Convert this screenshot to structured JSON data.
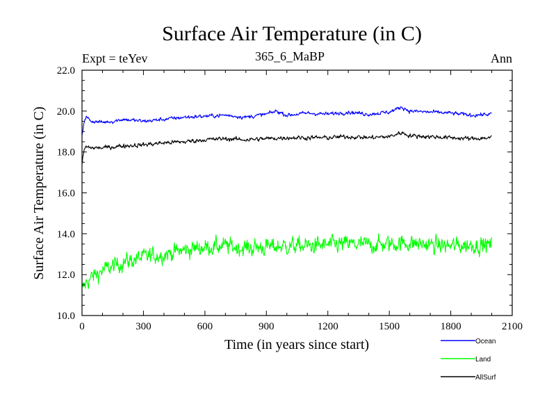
{
  "chart_data": {
    "type": "line",
    "title": "Surface Air Temperature (in C)",
    "subtitle": "365_6_MaBP",
    "left_label": "Expt = teYev",
    "right_label": "Ann",
    "xlabel": "Time (in years since start)",
    "ylabel": "Surface Air Temperature (in C)",
    "xlim": [
      0,
      2100
    ],
    "ylim": [
      10.0,
      22.0
    ],
    "xticks": [
      0,
      300,
      600,
      900,
      1200,
      1500,
      1800,
      2100
    ],
    "xtick_labels": [
      "0",
      "300",
      "600",
      "900",
      "1200",
      "1500",
      "1800",
      "2100"
    ],
    "yticks": [
      10.0,
      12.0,
      14.0,
      16.0,
      18.0,
      20.0,
      22.0
    ],
    "ytick_labels": [
      "10.0",
      "12.0",
      "14.0",
      "16.0",
      "18.0",
      "20.0",
      "22.0"
    ],
    "grid": false,
    "legend_position": "bottom-right",
    "series": [
      {
        "name": "Ocean",
        "color": "#0000ff",
        "x": [
          0,
          10,
          20,
          50,
          100,
          150,
          200,
          250,
          300,
          400,
          500,
          600,
          700,
          800,
          900,
          950,
          1000,
          1100,
          1200,
          1300,
          1400,
          1500,
          1560,
          1600,
          1700,
          1800,
          1900,
          2000
        ],
        "y": [
          18.8,
          19.5,
          19.7,
          19.5,
          19.45,
          19.5,
          19.6,
          19.55,
          19.5,
          19.6,
          19.7,
          19.75,
          19.8,
          19.7,
          19.85,
          20.0,
          19.8,
          19.9,
          19.85,
          19.95,
          19.85,
          19.95,
          20.2,
          20.0,
          19.95,
          19.9,
          19.8,
          19.85
        ],
        "noise": 0.08
      },
      {
        "name": "Land",
        "color": "#00ff00",
        "x": [
          0,
          10,
          20,
          50,
          100,
          150,
          200,
          300,
          400,
          500,
          600,
          700,
          800,
          900,
          1000,
          1100,
          1200,
          1300,
          1400,
          1500,
          1600,
          1700,
          1800,
          1900,
          2000
        ],
        "y": [
          11.2,
          11.4,
          11.6,
          11.9,
          12.2,
          12.4,
          12.6,
          12.85,
          13.0,
          13.2,
          13.35,
          13.4,
          13.3,
          13.35,
          13.4,
          13.4,
          13.45,
          13.5,
          13.45,
          13.5,
          13.55,
          13.45,
          13.4,
          13.45,
          13.45
        ],
        "noise": 0.35
      },
      {
        "name": "AllSurf",
        "color": "#000000",
        "x": [
          0,
          10,
          20,
          50,
          100,
          150,
          200,
          300,
          400,
          500,
          600,
          700,
          800,
          900,
          1000,
          1100,
          1200,
          1300,
          1400,
          1500,
          1560,
          1600,
          1700,
          1800,
          1900,
          2000
        ],
        "y": [
          17.4,
          18.1,
          18.25,
          18.2,
          18.2,
          18.25,
          18.3,
          18.35,
          18.45,
          18.5,
          18.6,
          18.65,
          18.6,
          18.65,
          18.7,
          18.7,
          18.7,
          18.75,
          18.7,
          18.75,
          18.95,
          18.8,
          18.75,
          18.7,
          18.65,
          18.7
        ],
        "noise": 0.09
      }
    ]
  }
}
